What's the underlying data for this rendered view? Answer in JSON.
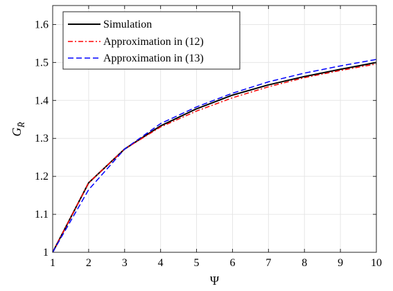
{
  "chart_data": {
    "type": "line",
    "xlabel": "Ψ",
    "ylabel": "G",
    "ylabel_subscript": "R̄",
    "xlim": [
      1,
      10
    ],
    "ylim": [
      1,
      1.65
    ],
    "xticks": [
      "1",
      "2",
      "3",
      "4",
      "5",
      "6",
      "7",
      "8",
      "9",
      "10"
    ],
    "yticks": [
      "1",
      "1.1",
      "1.2",
      "1.3",
      "1.4",
      "1.5",
      "1.6"
    ],
    "grid": true,
    "legend_position": "top-left",
    "x": [
      1,
      2,
      3,
      4,
      5,
      6,
      7,
      8,
      9,
      10
    ],
    "series": [
      {
        "name": "Simulation",
        "color": "#000000",
        "style": "solid",
        "values": [
          1.0,
          1.183,
          1.272,
          1.333,
          1.378,
          1.414,
          1.441,
          1.463,
          1.482,
          1.5
        ]
      },
      {
        "name": "Approximation in (12)",
        "color": "#ff0000",
        "style": "dashdot",
        "values": [
          1.0,
          1.183,
          1.272,
          1.33,
          1.372,
          1.407,
          1.436,
          1.46,
          1.479,
          1.496
        ]
      },
      {
        "name": "Approximation in (13)",
        "color": "#0000ff",
        "style": "dashed",
        "values": [
          1.0,
          1.165,
          1.272,
          1.339,
          1.383,
          1.419,
          1.449,
          1.472,
          1.491,
          1.508
        ]
      }
    ]
  }
}
